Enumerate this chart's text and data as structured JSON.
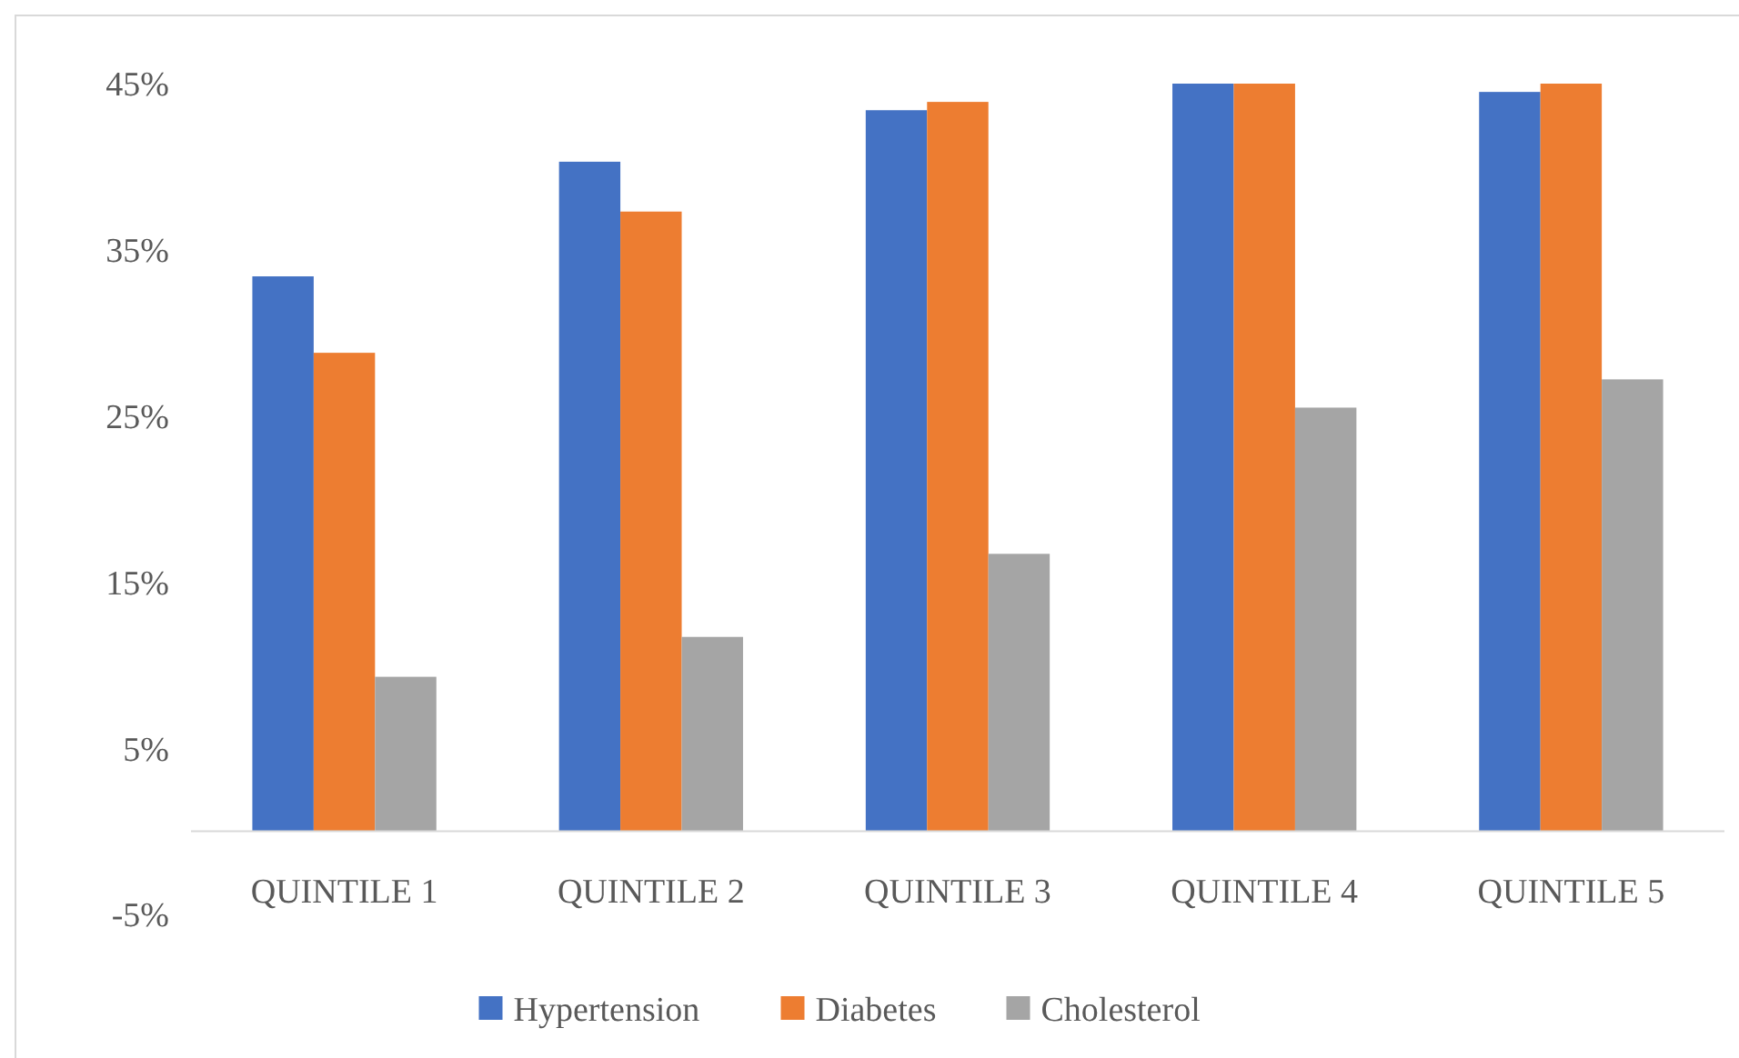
{
  "chart_data": {
    "type": "bar",
    "categories": [
      "QUINTILE 1",
      "QUINTILE 2",
      "QUINTILE 3",
      "QUINTILE 4",
      "QUINTILE 5"
    ],
    "series": [
      {
        "name": "Hypertension",
        "color": "#4472c4",
        "values": [
          33.4,
          40.3,
          43.4,
          45,
          44.5
        ]
      },
      {
        "name": "Diabetes",
        "color": "#ed7d31",
        "values": [
          28.8,
          37.3,
          43.9,
          45,
          45
        ]
      },
      {
        "name": "Cholesterol",
        "color": "#a5a5a5",
        "values": [
          9.3,
          11.7,
          16.7,
          25.5,
          27.2
        ]
      }
    ],
    "ylim": [
      -5,
      45
    ],
    "yticks": [
      {
        "value": -5,
        "label": "-5%"
      },
      {
        "value": 5,
        "label": "5%"
      },
      {
        "value": 15,
        "label": "15%"
      },
      {
        "value": 25,
        "label": "25%"
      },
      {
        "value": 35,
        "label": "35%"
      },
      {
        "value": 45,
        "label": "45%"
      }
    ],
    "grid": false,
    "legend": "bottom"
  }
}
